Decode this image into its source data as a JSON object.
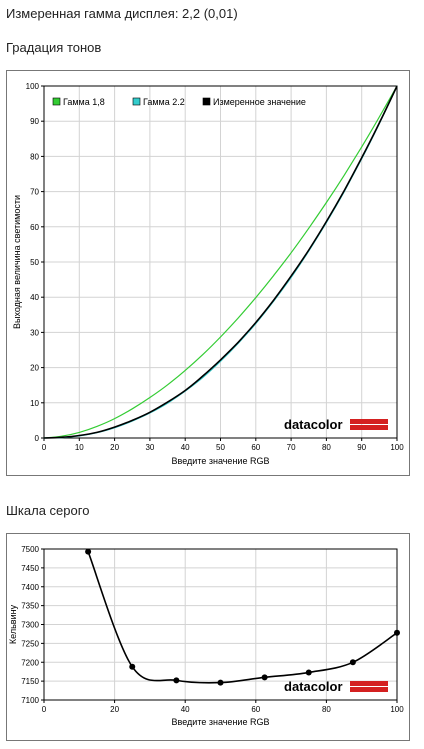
{
  "summary_text": "Измеренная гамма дисплея: 2,2 (0,01)",
  "section1_title": "Градация тонов",
  "section2_title": "Шкала серого",
  "logo_text": "datacolor",
  "colors": {
    "gamma18": "#33cc33",
    "gamma22": "#33cccc",
    "measured": "#000000",
    "logo_red": "#d42020"
  },
  "chart_data": [
    {
      "type": "line",
      "xlabel": "Введите значение RGB",
      "ylabel": "Выходная величина светимости",
      "xlim": [
        0,
        100
      ],
      "ylim": [
        0,
        100
      ],
      "xticks": [
        0,
        10,
        20,
        30,
        40,
        50,
        60,
        70,
        80,
        90,
        100
      ],
      "yticks": [
        0,
        10,
        20,
        30,
        40,
        50,
        60,
        70,
        80,
        90,
        100
      ],
      "grid": true,
      "legend_position": "top-left",
      "x": [
        0,
        5,
        10,
        15,
        20,
        25,
        30,
        35,
        40,
        45,
        50,
        55,
        60,
        65,
        70,
        75,
        80,
        85,
        90,
        95,
        100
      ],
      "series": [
        {
          "name": "Гамма 1,8",
          "color": "#33cc33",
          "values": [
            0,
            0.5,
            1.6,
            3.3,
            5.5,
            8.3,
            11.5,
            15.1,
            19.2,
            23.7,
            28.7,
            34.1,
            39.9,
            46.1,
            52.6,
            59.6,
            66.9,
            74.6,
            82.7,
            91.2,
            100
          ]
        },
        {
          "name": "Гамма 2.2",
          "color": "#33cccc",
          "values": [
            0,
            0.1,
            0.6,
            1.5,
            2.9,
            4.8,
            7.1,
            9.9,
            13.3,
            17.2,
            21.8,
            26.9,
            32.5,
            38.8,
            45.6,
            53.1,
            61.2,
            69.9,
            79.3,
            89.3,
            100
          ]
        },
        {
          "name": "Измеренное значение",
          "color": "#000000",
          "values": [
            0,
            0.2,
            0.7,
            1.6,
            3.1,
            5.0,
            7.3,
            10.2,
            13.5,
            17.6,
            22.2,
            27.2,
            32.8,
            39.1,
            46.0,
            53.4,
            61.5,
            70.2,
            79.6,
            89.5,
            100
          ]
        }
      ]
    },
    {
      "type": "line",
      "xlabel": "Введите значение RGB",
      "ylabel": "Кельвину",
      "xlim": [
        0,
        100
      ],
      "ylim": [
        7100,
        7500
      ],
      "xticks": [
        0,
        20,
        40,
        60,
        80,
        100
      ],
      "yticks": [
        7100,
        7150,
        7200,
        7250,
        7300,
        7350,
        7400,
        7450,
        7500
      ],
      "grid": true,
      "series": [
        {
          "name": "",
          "color": "#000000",
          "markers": true,
          "x": [
            12.5,
            25,
            37.5,
            50,
            62.5,
            75,
            87.5,
            100
          ],
          "values": [
            7493,
            7188,
            7152,
            7146,
            7160,
            7173,
            7200,
            7278
          ]
        }
      ]
    }
  ]
}
